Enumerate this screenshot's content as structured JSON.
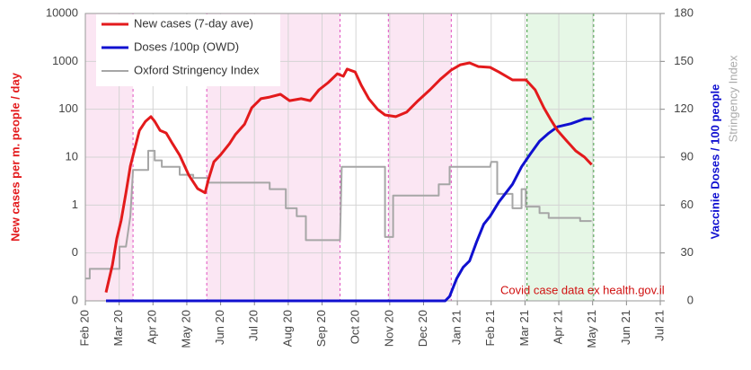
{
  "chart_data": {
    "type": "line",
    "ylog": true,
    "ylim": [
      0.01,
      10000
    ],
    "yticks": [
      {
        "value": 0.01,
        "label": "0"
      },
      {
        "value": 0.1,
        "label": "0"
      },
      1,
      10,
      100,
      1000,
      10000
    ],
    "y2lim": [
      0,
      180
    ],
    "y2ticks": [
      0,
      30,
      60,
      90,
      120,
      150,
      180
    ],
    "xlim": [
      0,
      17
    ],
    "xticks": [
      {
        "value": 0,
        "label": "Feb 20"
      },
      {
        "value": 1,
        "label": "Mar 20"
      },
      {
        "value": 2,
        "label": "Apr 20"
      },
      {
        "value": 3,
        "label": "May 20"
      },
      {
        "value": 4,
        "label": "Jun 20"
      },
      {
        "value": 5,
        "label": "Jul 20"
      },
      {
        "value": 6,
        "label": "Aug 20"
      },
      {
        "value": 7,
        "label": "Sep 20"
      },
      {
        "value": 8,
        "label": "Oct 20"
      },
      {
        "value": 9,
        "label": "Nov 20"
      },
      {
        "value": 10,
        "label": "Dec 20"
      },
      {
        "value": 11,
        "label": "Jan 21"
      },
      {
        "value": 12,
        "label": "Feb 21"
      },
      {
        "value": 13,
        "label": "Mar 21"
      },
      {
        "value": 14,
        "label": "Apr 21"
      },
      {
        "value": 15,
        "label": "May 21"
      },
      {
        "value": 16,
        "label": "Jun 21"
      },
      {
        "value": 17,
        "label": "Jul 21"
      }
    ],
    "grid": true,
    "legend": "top-left",
    "ylabel": "New cases per m. people / day",
    "y2label": [
      "Vaccinie Doses / 100 people",
      "Stringency Index"
    ],
    "annotation": "Covid case data ex health.gov.il",
    "bands": [
      {
        "start": 0,
        "end": 1.41,
        "color": "#fbe6f3"
      },
      {
        "start": 3.59,
        "end": 7.53,
        "color": "#fbe6f3"
      },
      {
        "start": 8.96,
        "end": 10.82,
        "color": "#fbe6f3"
      },
      {
        "start": 13.06,
        "end": 15.03,
        "color": "#e6f7e6"
      }
    ],
    "series": [
      {
        "name": "New cases (7-day ave)",
        "color": "#e31a1c",
        "width": 3,
        "x": [
          0.61,
          0.8,
          0.93,
          1.06,
          1.2,
          1.33,
          1.46,
          1.6,
          1.78,
          1.94,
          2.05,
          2.21,
          2.39,
          2.58,
          2.79,
          3.06,
          3.32,
          3.54,
          3.64,
          3.8,
          3.99,
          4.26,
          4.44,
          4.71,
          4.92,
          5.19,
          5.45,
          5.77,
          6.04,
          6.38,
          6.65,
          6.91,
          7.18,
          7.45,
          7.63,
          7.74,
          7.98,
          8.16,
          8.38,
          8.64,
          8.86,
          9.18,
          9.5,
          9.84,
          10.19,
          10.5,
          10.82,
          11.09,
          11.36,
          11.62,
          11.97,
          12.23,
          12.63,
          13.03,
          13.3,
          13.56,
          13.75,
          13.96,
          14.23,
          14.5,
          14.76,
          14.97
        ],
        "values": [
          0.015,
          0.056,
          0.2,
          0.48,
          1.8,
          6.5,
          15,
          36,
          56,
          70,
          56,
          36,
          32,
          19,
          11,
          4.2,
          2.2,
          1.8,
          3.4,
          8,
          11,
          19,
          30,
          49,
          107,
          166,
          180,
          205,
          151,
          166,
          151,
          255,
          360,
          550,
          490,
          690,
          600,
          316,
          166,
          100,
          76,
          70,
          87,
          151,
          255,
          425,
          660,
          850,
          930,
          780,
          750,
          600,
          410,
          410,
          255,
          107,
          63,
          36,
          22,
          13.5,
          10,
          7
        ]
      },
      {
        "name": "Doses /100p (OWD)",
        "color": "#1010d0",
        "width": 3,
        "axis": "y2",
        "x": [
          0.61,
          10.64,
          10.77,
          10.98,
          11.17,
          11.36,
          11.57,
          11.78,
          11.97,
          12.23,
          12.63,
          12.9,
          13.16,
          13.43,
          13.7,
          13.96,
          14.36,
          14.76,
          14.97
        ],
        "values": [
          0,
          0,
          2.8,
          14,
          21,
          25,
          37,
          48,
          53,
          62,
          73,
          84,
          92,
          100,
          105,
          109,
          111,
          114,
          114
        ]
      },
      {
        "name": "Oxford Stringency Index",
        "color": "#a6a6a6",
        "width": 2,
        "axis": "y2",
        "x": [
          0,
          0.13,
          0.13,
          1.01,
          1.01,
          1.2,
          1.33,
          1.41,
          1.86,
          1.86,
          2.05,
          2.05,
          2.26,
          2.26,
          2.79,
          2.79,
          3.19,
          3.19,
          3.64,
          3.64,
          5.45,
          5.45,
          5.93,
          5.93,
          6.25,
          6.25,
          6.52,
          6.52,
          7.53,
          7.58,
          8.86,
          8.86,
          9.1,
          9.1,
          10.45,
          10.45,
          10.77,
          10.77,
          11.97,
          12.0,
          12.18,
          12.18,
          12.63,
          12.63,
          12.9,
          12.9,
          13.03,
          13.03,
          13.43,
          13.43,
          13.7,
          13.7,
          14.63,
          14.63,
          14.97
        ],
        "values": [
          14,
          14,
          20,
          20,
          34,
          34,
          53,
          82,
          82,
          94,
          94,
          88,
          88,
          84,
          84,
          79,
          79,
          77,
          77,
          74,
          74,
          70,
          70,
          58,
          58,
          53,
          53,
          38,
          38,
          84,
          84,
          40,
          40,
          66,
          66,
          73,
          73,
          84,
          84,
          87,
          87,
          67,
          67,
          58,
          58,
          70,
          70,
          59,
          59,
          55,
          55,
          52,
          52,
          50,
          50
        ]
      }
    ]
  }
}
